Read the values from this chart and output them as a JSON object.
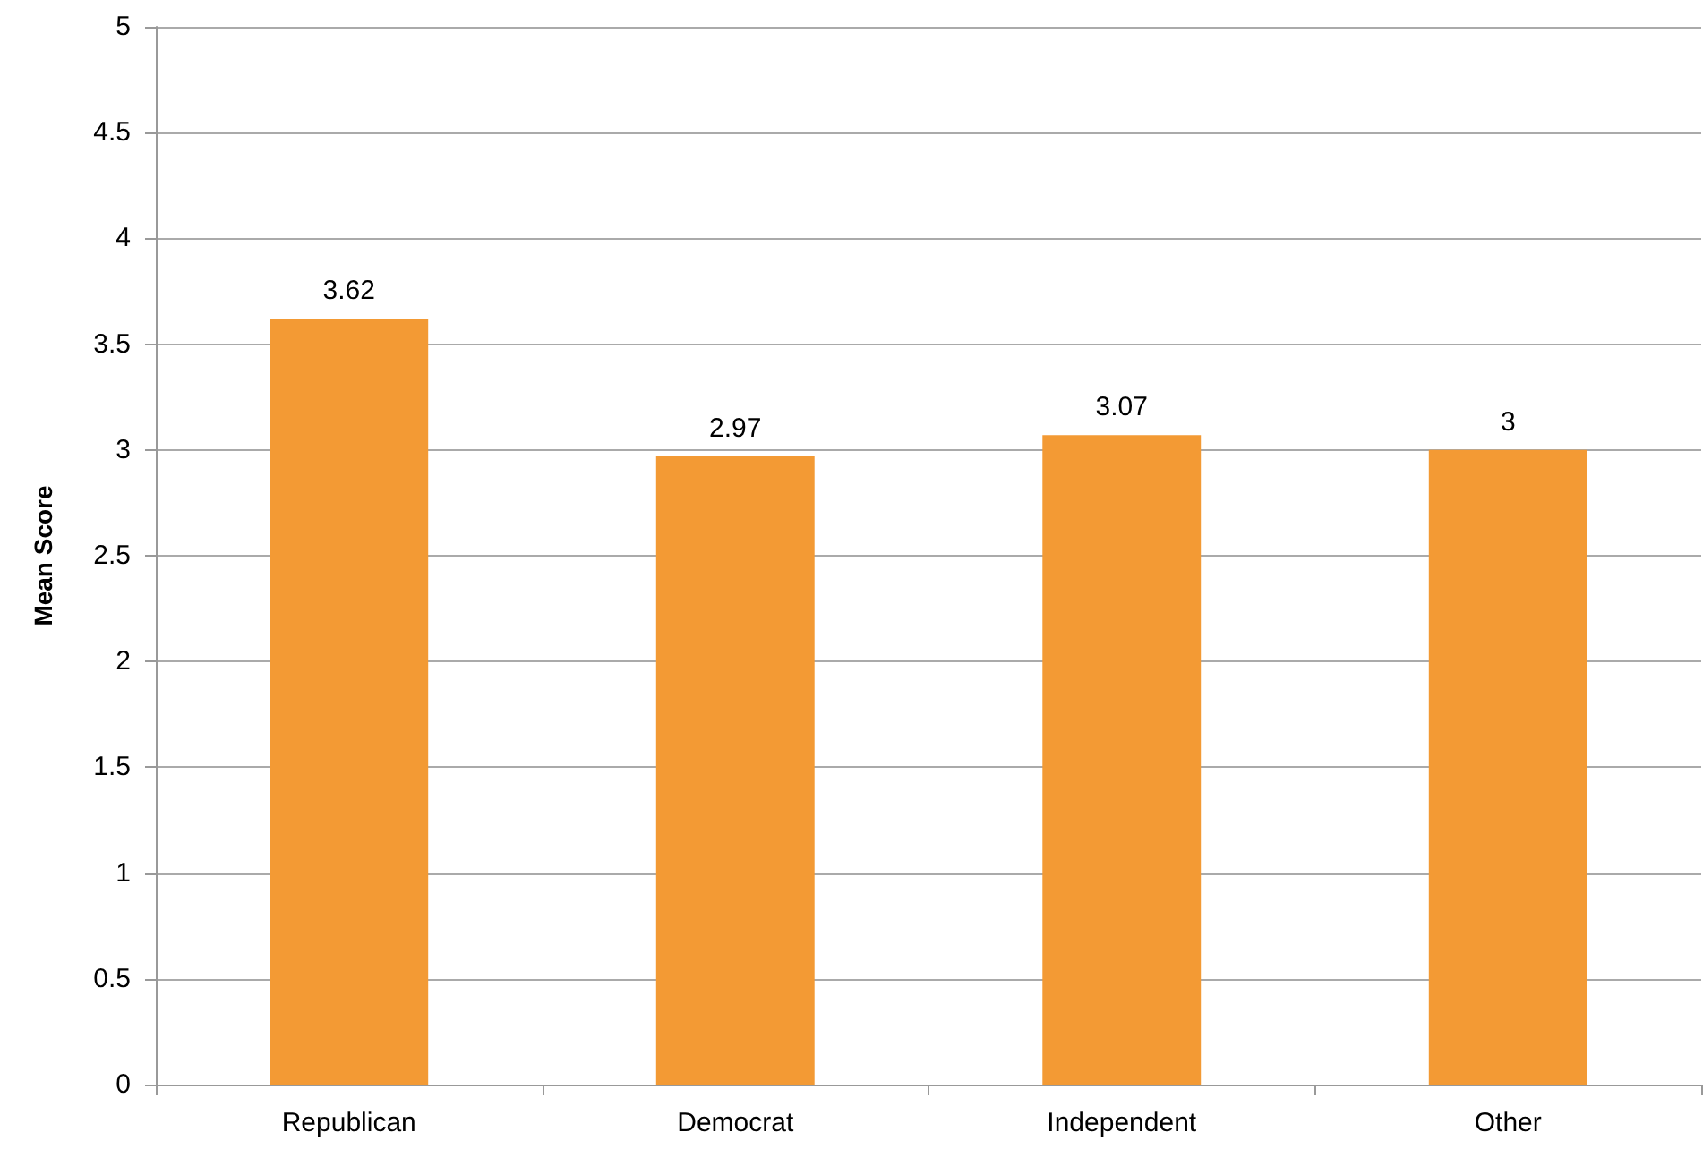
{
  "chart_data": {
    "type": "bar",
    "ylabel": "Mean Score",
    "categories": [
      "Republican",
      "Democrat",
      "Independent",
      "Other"
    ],
    "values": [
      3.62,
      2.97,
      3.07,
      3
    ],
    "color": "#f39a34",
    "ylim": [
      0,
      5
    ],
    "yticks": [
      0,
      0.5,
      1,
      1.5,
      2,
      2.5,
      3,
      3.5,
      4,
      4.5,
      5
    ],
    "grid": "y",
    "data_labels": true
  }
}
